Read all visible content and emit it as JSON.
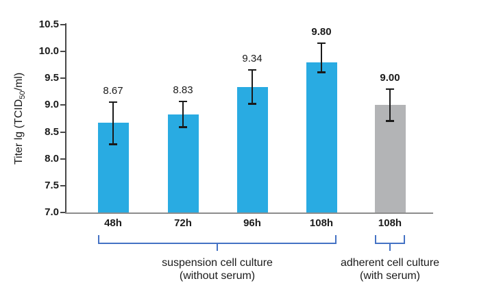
{
  "chart_data": {
    "type": "bar",
    "title": "",
    "xlabel": "",
    "ylabel": "Titer lg (TCID50/ml)",
    "ylabel_parts": {
      "prefix": "Titer lg (TCID",
      "sub": "50",
      "suffix": "/ml)"
    },
    "ylim": [
      7.0,
      10.5
    ],
    "grid": false,
    "legend": null,
    "ytick_labels": [
      "10.5",
      "10.0",
      "9.5",
      "9.0",
      "8.5",
      "8.0",
      "7.5",
      "7.0"
    ],
    "yticks": [
      10.5,
      10.0,
      9.5,
      9.0,
      8.5,
      8.0,
      7.5,
      7.0
    ],
    "categories": [
      "48h",
      "72h",
      "96h",
      "108h",
      "108h"
    ],
    "values": [
      8.67,
      8.83,
      9.34,
      9.8,
      9.0
    ],
    "bars": [
      {
        "category": "48h",
        "value": 8.67,
        "label": "8.67",
        "bold": false,
        "color": "#29ABE2",
        "whisker_top": 9.07,
        "whisker_bottom": 8.26
      },
      {
        "category": "72h",
        "value": 8.83,
        "label": "8.83",
        "bold": false,
        "color": "#29ABE2",
        "whisker_top": 9.08,
        "whisker_bottom": 8.58
      },
      {
        "category": "96h",
        "value": 9.34,
        "label": "9.34",
        "bold": false,
        "color": "#29ABE2",
        "whisker_top": 9.67,
        "whisker_bottom": 9.02
      },
      {
        "category": "108h",
        "value": 9.8,
        "label": "9.80",
        "bold": true,
        "color": "#29ABE2",
        "whisker_top": 10.17,
        "whisker_bottom": 9.6
      },
      {
        "category": "108h",
        "value": 9.0,
        "label": "9.00",
        "bold": true,
        "color": "#B3B4B6",
        "whisker_top": 9.31,
        "whisker_bottom": 8.7
      }
    ],
    "groups": [
      {
        "line1": "suspension cell culture",
        "line2": "(without serum)",
        "bar_start": 0,
        "bar_end": 3
      },
      {
        "line1": "adherent cell culture",
        "line2": "(with serum)",
        "bar_start": 4,
        "bar_end": 4
      }
    ],
    "colors": {
      "bar_blue": "#29ABE2",
      "bar_gray": "#B3B4B6",
      "bracket": "#4472C4",
      "y_axis": "#474747",
      "x_axis": "#8C8C8C",
      "error_bar": "#1A1A1A",
      "text": "#1A1A1A"
    }
  }
}
